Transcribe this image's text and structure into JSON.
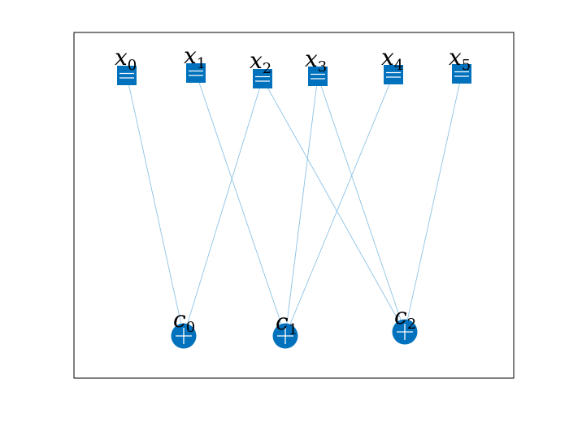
{
  "colors": {
    "node": "#0072bd",
    "edge": "#8ec3e6",
    "frame": "#000000",
    "symbol": "#ffffff"
  },
  "variables": [
    {
      "id": "x0",
      "base": "x",
      "sub": "0",
      "symbol": "equals-icon"
    },
    {
      "id": "x1",
      "base": "x",
      "sub": "1",
      "symbol": "equals-icon"
    },
    {
      "id": "x2",
      "base": "x",
      "sub": "2",
      "symbol": "equals-icon"
    },
    {
      "id": "x3",
      "base": "x",
      "sub": "3",
      "symbol": "equals-icon"
    },
    {
      "id": "x4",
      "base": "x",
      "sub": "4",
      "symbol": "equals-icon"
    },
    {
      "id": "x5",
      "base": "x",
      "sub": "5",
      "symbol": "equals-icon"
    }
  ],
  "checks": [
    {
      "id": "c0",
      "base": "c",
      "sub": "0",
      "symbol": "plus-icon"
    },
    {
      "id": "c1",
      "base": "c",
      "sub": "1",
      "symbol": "plus-icon"
    },
    {
      "id": "c2",
      "base": "c",
      "sub": "2",
      "symbol": "plus-icon"
    }
  ],
  "edges": [
    [
      "x0",
      "c0"
    ],
    [
      "x1",
      "c1"
    ],
    [
      "x2",
      "c0"
    ],
    [
      "x2",
      "c2"
    ],
    [
      "x3",
      "c1"
    ],
    [
      "x3",
      "c2"
    ],
    [
      "x4",
      "c1"
    ],
    [
      "x5",
      "c2"
    ]
  ]
}
